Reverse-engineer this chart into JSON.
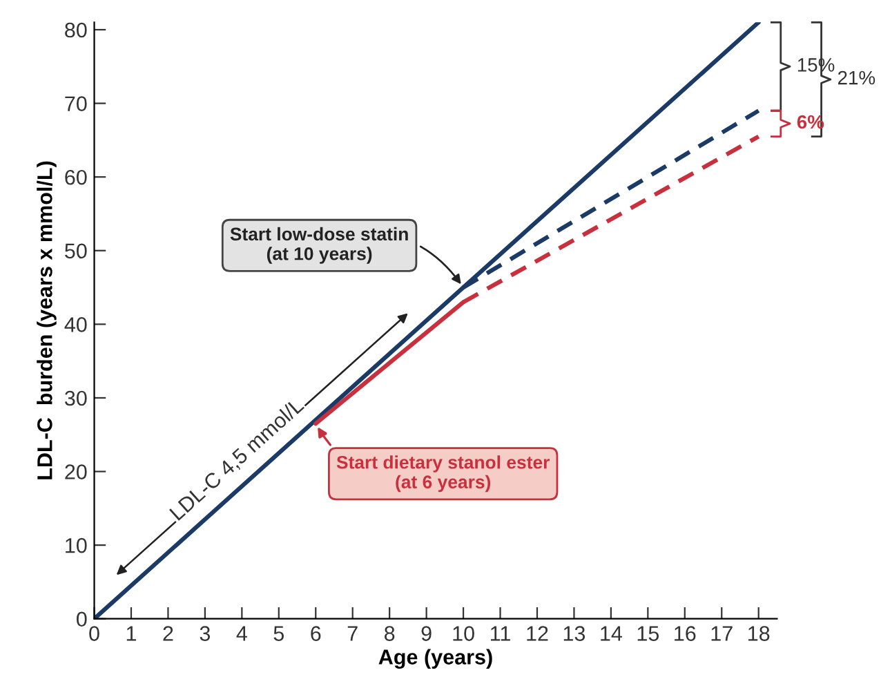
{
  "chart_data": {
    "type": "line",
    "xlabel": "Age (years)",
    "ylabel": "LDL-C  burden (years x mmol/L)",
    "xlim": [
      0,
      18.5
    ],
    "ylim": [
      0,
      81
    ],
    "xticks": [
      0,
      1,
      2,
      3,
      4,
      5,
      6,
      7,
      8,
      9,
      10,
      11,
      12,
      13,
      14,
      15,
      16,
      17,
      18
    ],
    "yticks": [
      0,
      10,
      20,
      30,
      40,
      50,
      60,
      70,
      80
    ],
    "grid": false,
    "legend": false,
    "marker": "none",
    "series": [
      {
        "color": "#1b3a66",
        "x": [
          0,
          18
        ],
        "values": [
          0,
          81
        ],
        "line_style": "solid"
      },
      {
        "color": "#c8303d",
        "x": [
          6,
          10
        ],
        "values": [
          26.5,
          43
        ],
        "line_style": "solid"
      },
      {
        "color": "#1b3a66",
        "x": [
          10,
          18
        ],
        "values": [
          45,
          69
        ],
        "line_style": "dashed"
      },
      {
        "color": "#c8303d",
        "x": [
          10,
          18
        ],
        "values": [
          43,
          65.5
        ],
        "line_style": "dashed"
      }
    ],
    "annotations": [
      {
        "text": "Start low-dose statin\n(at 10 years)",
        "x": 10,
        "y": 45
      },
      {
        "text": "Start dietary stanol ester\n(at 6 years)",
        "x": 6,
        "y": 26.5
      },
      {
        "text": "LDL-C 4,5 mmol/L",
        "x": 4.3,
        "y": 19.4
      },
      "15%",
      "6%",
      "21%"
    ]
  }
}
